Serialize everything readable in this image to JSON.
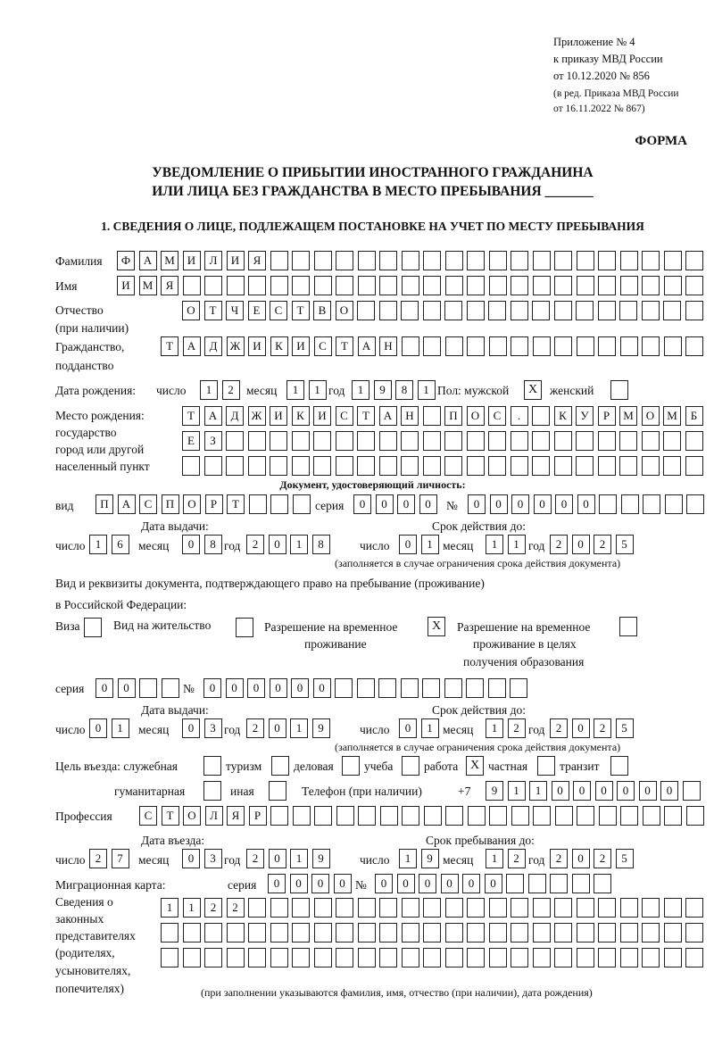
{
  "header": {
    "appendix": "Приложение № 4",
    "order": "к приказу МВД России",
    "order_date": "от 10.12.2020 № 856",
    "edition1": "(в ред. Приказа МВД России",
    "edition2": "от 16.11.2022 № 867)",
    "form_label": "ФОРМА",
    "title1": "УВЕДОМЛЕНИЕ О ПРИБЫТИИ ИНОСТРАННОГО ГРАЖДАНИНА",
    "title2": "ИЛИ ЛИЦА БЕЗ ГРАЖДАНСТВА В МЕСТО ПРЕБЫВАНИЯ _______",
    "section1": "1. СВЕДЕНИЯ О ЛИЦЕ, ПОДЛЕЖАЩЕМ ПОСТАНОВКЕ НА УЧЕТ ПО МЕСТУ ПРЕБЫВАНИЯ"
  },
  "labels": {
    "surname": "Фамилия",
    "name": "Имя",
    "patronymic": "Отчество",
    "patronymic2": "(при наличии)",
    "citizenship": "Гражданство,",
    "citizenship2": "подданство",
    "birth_date": "Дата рождения:",
    "day": "число",
    "month": "месяц",
    "year": "год",
    "sex": "Пол: мужской",
    "female": "женский",
    "birth_place": "Место рождения:",
    "birth_place2": "государство",
    "birth_place3": "город или другой",
    "birth_place4": "населенный пункт",
    "id_doc": "Документ, удостоверяющий личность:",
    "kind": "вид",
    "series": "серия",
    "number": "№",
    "issue_date": "Дата выдачи:",
    "valid_until": "Срок действия до:",
    "validity_note": "(заполняется в случае ограничения срока действия документа)",
    "stay_doc1": "Вид и реквизиты документа, подтверждающего право на пребывание (проживание)",
    "stay_doc2": "в Российской Федерации:",
    "visa": "Виза",
    "residence": "Вид на жительство",
    "temp_res1": "Разрешение на временное",
    "temp_res2": "проживание",
    "temp_edu1": "Разрешение на временное",
    "temp_edu2": "проживание в целях",
    "temp_edu3": "получения образования",
    "purpose": "Цель въезда: служебная",
    "tourism": "туризм",
    "business": "деловая",
    "study": "учеба",
    "work": "работа",
    "private": "частная",
    "transit": "транзит",
    "humanitarian": "гуманитарная",
    "other": "иная",
    "phone": "Телефон (при наличии)",
    "phone_prefix": "+7",
    "profession": "Профессия",
    "entry_date": "Дата въезда:",
    "stay_until": "Срок пребывания до:",
    "migration_card": "Миграционная карта:",
    "reps1": "Сведения о",
    "reps2": "законных",
    "reps3": "представителях",
    "reps4": "(родителях,",
    "reps5": "усыновителях,",
    "reps6": "попечителях)",
    "reps_note": "(при заполнении указываются фамилия, имя, отчество (при наличии), дата рождения)"
  },
  "person": {
    "surname": "ФАМИЛИЯ",
    "name": "ИМЯ",
    "patronymic": "ОТЧЕСТВО",
    "citizenship": "ТАДЖИКИСТАН",
    "birth_day": "12",
    "birth_month": "11",
    "birth_year": "1981",
    "male": "X",
    "female": "",
    "birth_place1": "ТАДЖИКИСТАН ПОС. КУРМОМБ",
    "birth_place2": "ЕЗ",
    "birth_place3": ""
  },
  "id_document": {
    "kind": "ПАСПОРТ",
    "series": "0000",
    "number": "000000",
    "issue_day": "16",
    "issue_month": "08",
    "issue_year": "2018",
    "valid_day": "01",
    "valid_month": "11",
    "valid_year": "2025"
  },
  "stay_document": {
    "visa": "",
    "residence": "",
    "temp_residence": "X",
    "temp_residence_edu": "",
    "series": "00",
    "number": "000000",
    "issue_day": "01",
    "issue_month": "03",
    "issue_year": "2019",
    "valid_day": "01",
    "valid_month": "12",
    "valid_year": "2025"
  },
  "purpose": {
    "service": "",
    "tourism": "",
    "business": "",
    "study": "",
    "work": "X",
    "private": "",
    "transit": "",
    "humanitarian": "",
    "other": ""
  },
  "phone": "911000000",
  "profession": "СТОЛЯР",
  "entry": {
    "day": "27",
    "month": "03",
    "year": "2019",
    "until_day": "19",
    "until_month": "12",
    "until_year": "2025"
  },
  "migration_card": {
    "series": "0000",
    "number": "000000"
  },
  "representatives": {
    "line1": "1122",
    "line2": "",
    "line3": ""
  }
}
